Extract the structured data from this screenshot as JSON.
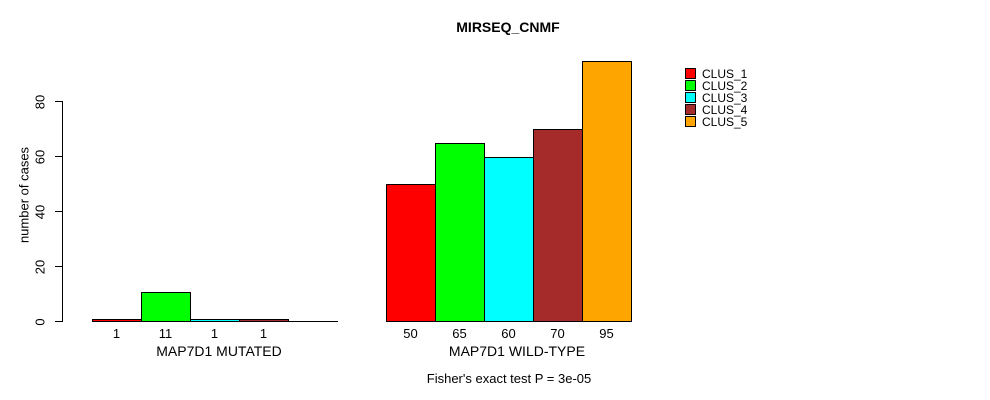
{
  "chart_data": {
    "type": "bar",
    "title": "MIRSEQ_CNMF",
    "ylabel": "number of cases",
    "xlabel": "",
    "ylim": [
      0,
      80
    ],
    "yticks": [
      0,
      20,
      40,
      60,
      80
    ],
    "grid": false,
    "legend_position": "right",
    "legend": [
      {
        "name": "CLUS_1",
        "color": "#FF0000"
      },
      {
        "name": "CLUS_2",
        "color": "#00FF00"
      },
      {
        "name": "CLUS_3",
        "color": "#00FFFF"
      },
      {
        "name": "CLUS_4",
        "color": "#A52A2A"
      },
      {
        "name": "CLUS_5",
        "color": "#FFA500"
      }
    ],
    "groups": [
      {
        "label": "MAP7D1 MUTATED",
        "values": [
          1,
          11,
          1,
          1,
          0
        ],
        "bar_labels": [
          "1",
          "11",
          "1",
          "1",
          ""
        ]
      },
      {
        "label": "MAP7D1 WILD-TYPE",
        "values": [
          50,
          65,
          60,
          70,
          95
        ],
        "bar_labels": [
          "50",
          "65",
          "60",
          "70",
          "95"
        ]
      }
    ],
    "annotation": "Fisher's exact test P = 3e-05"
  }
}
